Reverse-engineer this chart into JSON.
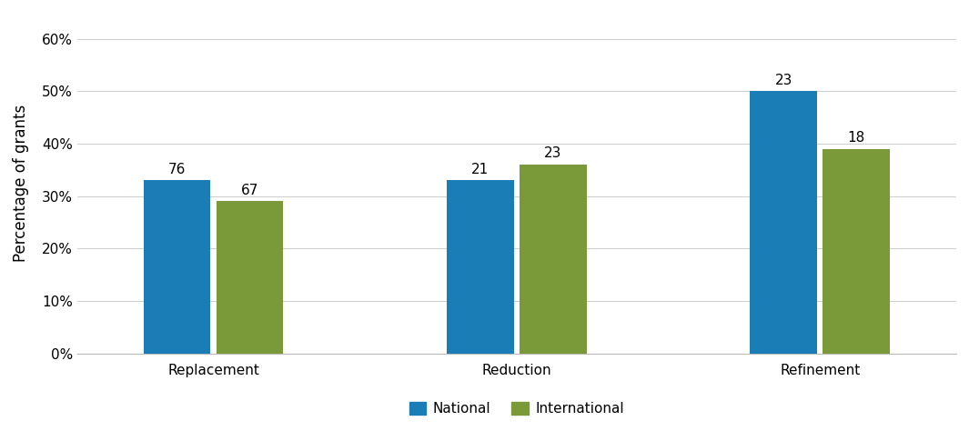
{
  "categories": [
    "Replacement",
    "Reduction",
    "Refinement"
  ],
  "national_values": [
    0.33,
    0.33,
    0.5
  ],
  "international_values": [
    0.29,
    0.36,
    0.39
  ],
  "national_labels": [
    "76",
    "21",
    "23"
  ],
  "international_labels": [
    "67",
    "23",
    "18"
  ],
  "national_color": "#1a7db5",
  "international_color": "#7a9a3a",
  "ylabel": "Percentage of grants",
  "ylim": [
    0,
    0.65
  ],
  "yticks": [
    0,
    0.1,
    0.2,
    0.3,
    0.4,
    0.5,
    0.6
  ],
  "ytick_labels": [
    "0%",
    "10%",
    "20%",
    "30%",
    "40%",
    "50%",
    "60%"
  ],
  "legend_labels": [
    "National",
    "International"
  ],
  "bar_width": 0.22,
  "x_positions": [
    0,
    1.0,
    2.0
  ],
  "label_fontsize": 11,
  "axis_fontsize": 12,
  "tick_fontsize": 11,
  "legend_fontsize": 11,
  "background_color": "#ffffff",
  "grid_color": "#d0d0d0"
}
